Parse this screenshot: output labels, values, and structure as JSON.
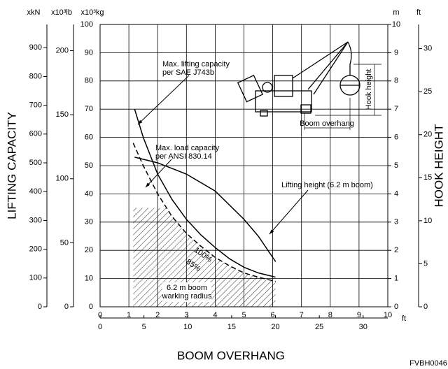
{
  "chart_data": {
    "type": "line",
    "units": {
      "kn": "xkN",
      "klb": "x10³lb",
      "kg": "x10³kg",
      "m": "m",
      "ft": "ft",
      "xft": "ft"
    },
    "y_title": "LIFTING CAPACITY",
    "y2_title": "HOOK HEIGHT",
    "x_title": "BOOM OVERHANG",
    "code": "FVBH0046",
    "xlim": [
      0,
      10
    ],
    "xticks": [
      0,
      1,
      2,
      3,
      4,
      5,
      6,
      7,
      8,
      9,
      10
    ],
    "xft_lim": [
      0,
      32.81
    ],
    "xft_ticks": [
      0,
      5,
      10,
      15,
      20,
      25,
      30
    ],
    "ylim": [
      0,
      100
    ],
    "yticks": [
      0,
      10,
      20,
      30,
      40,
      50,
      60,
      70,
      80,
      90,
      100
    ],
    "ykn_lim": [
      0,
      980.7
    ],
    "ykn_ticks": [
      0,
      100,
      200,
      300,
      400,
      500,
      600,
      700,
      800,
      900
    ],
    "yklb_lim": [
      0,
      220.5
    ],
    "yklb_ticks": [
      0,
      50,
      100,
      150,
      200
    ],
    "y2lim": [
      0,
      10
    ],
    "y2ticks": [
      0,
      1,
      2,
      3,
      4,
      5,
      6,
      7,
      8,
      9,
      10
    ],
    "y2ft_lim": [
      0,
      32.81
    ],
    "y2ft_ticks": [
      0,
      5,
      10,
      15,
      20,
      25,
      30
    ],
    "grid": true,
    "series": [
      {
        "color": "#000",
        "dash": false,
        "x": [
          1.2,
          1.5,
          2,
          2.5,
          3,
          3.5,
          4,
          4.5,
          5,
          5.5,
          6.1
        ],
        "values": [
          70,
          60,
          47,
          38,
          31,
          25.5,
          21,
          17,
          14,
          12,
          10.5
        ]
      },
      {
        "color": "#000",
        "dash": true,
        "x": [
          1.15,
          1.5,
          2,
          2.5,
          3,
          3.5,
          4,
          4.5,
          5,
          5.5,
          6.1
        ],
        "values": [
          58,
          50,
          40,
          32,
          26,
          21.5,
          17.5,
          14.5,
          12,
          10.5,
          9
        ]
      },
      {
        "color": "#000",
        "dash": false,
        "axis": "y2",
        "x": [
          1.2,
          2,
          3,
          4,
          5,
          5.5,
          6.1
        ],
        "values": [
          5.3,
          5.1,
          4.7,
          4.1,
          3.1,
          2.5,
          1.6
        ]
      }
    ],
    "shaded_region": {
      "x": [
        1.1,
        6.1
      ],
      "ymax": 35,
      "lines": [
        "6.2 m boom",
        "warking radius"
      ]
    },
    "annotations": [
      {
        "lines": [
          "Max. lifting capacity",
          "per SAE J743b"
        ]
      },
      {
        "lines": [
          "Max. load capacity",
          "per ANSI 830.14"
        ]
      },
      {
        "lines": [
          "Lifting height (6.2 m boom)"
        ]
      },
      {
        "lines": [
          "100%"
        ]
      },
      {
        "lines": [
          "85%"
        ]
      }
    ],
    "inset": {
      "hook_height": "Hook height",
      "boom_overhang": "Boom overhang"
    }
  }
}
